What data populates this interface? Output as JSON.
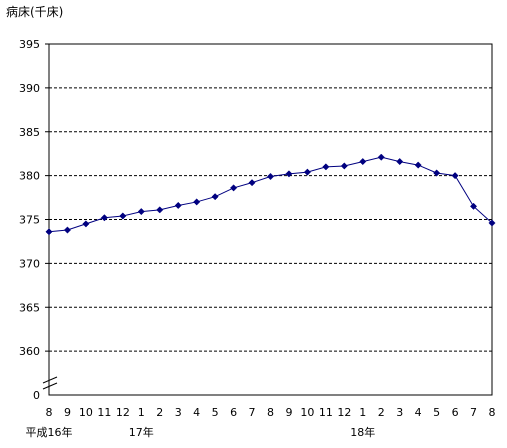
{
  "chart_data": {
    "type": "line",
    "ylabel": "病床(千床)",
    "yticks": [
      "395",
      "390",
      "385",
      "380",
      "375",
      "370",
      "365",
      "360"
    ],
    "yzero": "0",
    "ylim": [
      360,
      395
    ],
    "axis_break": true,
    "grid": true,
    "x": [
      "8",
      "9",
      "10",
      "11",
      "12",
      "1",
      "2",
      "3",
      "4",
      "5",
      "6",
      "7",
      "8",
      "9",
      "10",
      "11",
      "12",
      "1",
      "2",
      "3",
      "4",
      "5",
      "6",
      "7",
      "8"
    ],
    "year_labels": [
      {
        "label": "平成16年",
        "at_index": 0
      },
      {
        "label": "17年",
        "at_index": 5
      },
      {
        "label": "18年",
        "at_index": 17
      }
    ],
    "series": [
      {
        "values": [
          373.6,
          373.8,
          374.5,
          375.2,
          375.4,
          375.9,
          376.1,
          376.6,
          377.0,
          377.6,
          378.6,
          379.2,
          379.9,
          380.2,
          380.4,
          381.0,
          381.1,
          381.6,
          382.1,
          381.6,
          381.2,
          380.3,
          380.0,
          376.5,
          374.6
        ],
        "color": "#000080"
      }
    ]
  }
}
